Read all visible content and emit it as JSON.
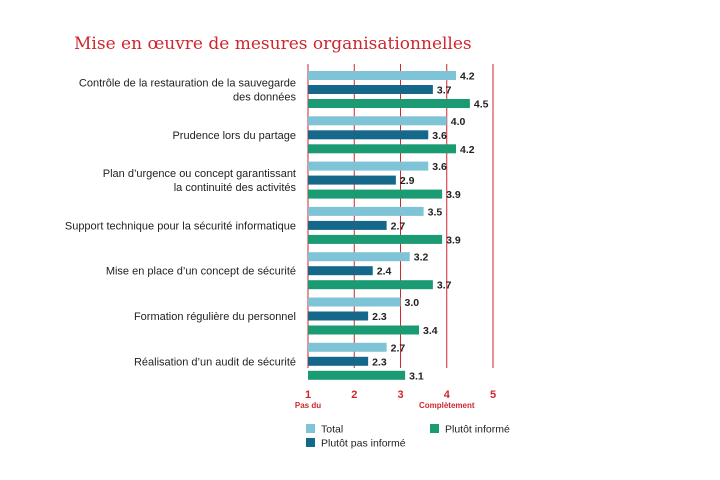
{
  "chart_data": {
    "type": "bar",
    "orientation": "horizontal",
    "title": "Mise en œuvre de mesures organisationnelles",
    "categories": [
      [
        "Contrôle de la restauration de la sauvegarde",
        "des données"
      ],
      [
        "Prudence lors du partage"
      ],
      [
        "Plan d’urgence ou concept garantissant",
        "la continuité des activités"
      ],
      [
        "Support technique pour la sécurité informatique"
      ],
      [
        "Mise en place d’un concept de sécurité"
      ],
      [
        "Formation régulière du personnel"
      ],
      [
        "Réalisation d’un audit de sécurité"
      ]
    ],
    "series": [
      {
        "name": "Total",
        "color": "#7ec4d6",
        "values": [
          4.2,
          4.0,
          3.6,
          3.5,
          3.2,
          3.0,
          2.7
        ],
        "labels": [
          "4.2",
          "4.0",
          "3.6",
          "3.5",
          "3.2",
          "3.0",
          "2.7"
        ]
      },
      {
        "name": "Plutôt pas informé",
        "color": "#16688a",
        "values": [
          3.7,
          3.6,
          2.9,
          2.7,
          2.4,
          2.3,
          2.3
        ],
        "labels": [
          "3.7",
          "3.6",
          "2.9",
          "2.7",
          "2.4",
          "2.3",
          "2.3"
        ]
      },
      {
        "name": "Plutôt informé",
        "color": "#1a9b73",
        "values": [
          4.5,
          4.2,
          3.9,
          3.9,
          3.7,
          3.4,
          3.1
        ],
        "labels": [
          "4.5",
          "4.2",
          "3.9",
          "3.9",
          "3.7",
          "3.4",
          "3.1"
        ]
      }
    ],
    "xlim": [
      1,
      5
    ],
    "ticks": [
      "1",
      "2",
      "3",
      "4",
      "5"
    ],
    "scale_labels": {
      "low": "Pas du",
      "high": "Complètement"
    },
    "grid_color": "#d0262e",
    "grid": true,
    "legend_position": "bottom"
  }
}
